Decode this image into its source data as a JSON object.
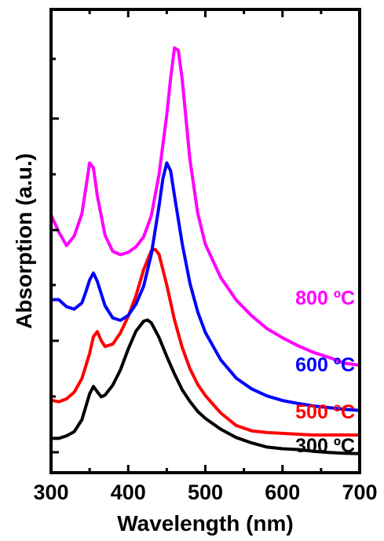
{
  "chart_data": {
    "type": "line",
    "title": "",
    "xlabel": "Wavelength (nm)",
    "ylabel": "Absorption (a.u.)",
    "xlim": [
      300,
      700
    ],
    "ylim": [
      0,
      100
    ],
    "xticks": [
      300,
      400,
      500,
      600,
      700
    ],
    "y_tick_labels_shown": false,
    "grid": false,
    "legend": "inline labels at right",
    "series": [
      {
        "name": "300 ºC",
        "color": "#000000",
        "x": [
          300,
          310,
          320,
          330,
          340,
          350,
          355,
          360,
          365,
          370,
          380,
          390,
          400,
          410,
          420,
          425,
          430,
          440,
          450,
          460,
          470,
          480,
          490,
          500,
          520,
          540,
          560,
          580,
          600,
          620,
          640,
          660,
          680,
          700
        ],
        "y": [
          6.0,
          6.0,
          6.6,
          7.6,
          10.5,
          16.7,
          18.5,
          17.2,
          16.0,
          16.4,
          18.8,
          22.5,
          27.5,
          31.8,
          34.2,
          34.5,
          33.8,
          30.3,
          25.7,
          21.5,
          17.7,
          14.9,
          12.5,
          10.8,
          8.2,
          6.2,
          4.9,
          3.9,
          3.5,
          3.3,
          2.9,
          2.6,
          2.4,
          2.3
        ]
      },
      {
        "name": "500 ºC",
        "color": "#ff0000",
        "x": [
          300,
          310,
          320,
          330,
          340,
          350,
          355,
          360,
          365,
          370,
          380,
          390,
          400,
          410,
          420,
          430,
          435,
          440,
          450,
          460,
          470,
          480,
          490,
          500,
          520,
          540,
          560,
          580,
          600,
          620,
          640,
          660,
          680,
          700
        ],
        "y": [
          15.2,
          14.8,
          15.5,
          17.1,
          20.4,
          26.4,
          30.5,
          31.7,
          29.5,
          28.1,
          28.7,
          31.4,
          35.4,
          40.3,
          46.6,
          51.2,
          51.5,
          50.3,
          42.9,
          34.5,
          27.9,
          22.8,
          19.0,
          16.3,
          12.1,
          9.1,
          7.8,
          7.4,
          7.2,
          7.0,
          6.8,
          6.8,
          6.8,
          6.8
        ]
      },
      {
        "name": "600 ºC",
        "color": "#0000ff",
        "x": [
          300,
          310,
          320,
          330,
          340,
          345,
          350,
          355,
          360,
          370,
          380,
          390,
          400,
          410,
          420,
          430,
          440,
          445,
          450,
          455,
          460,
          470,
          480,
          490,
          500,
          520,
          540,
          560,
          580,
          600,
          620,
          640,
          660,
          680,
          700
        ],
        "y": [
          39.4,
          39.4,
          37.7,
          37.1,
          38.6,
          41.2,
          44.1,
          45.8,
          43.8,
          37.9,
          35.0,
          34.4,
          35.6,
          38.3,
          42.6,
          50.3,
          61.9,
          68.6,
          72.3,
          70.4,
          64.4,
          52.9,
          43.4,
          36.5,
          31.5,
          24.9,
          20.5,
          17.9,
          16.2,
          15.1,
          14.4,
          13.8,
          13.4,
          13.0,
          12.7
        ]
      },
      {
        "name": "800 ºC",
        "color": "#ff00ff",
        "x": [
          300,
          310,
          320,
          330,
          340,
          345,
          350,
          355,
          360,
          370,
          380,
          390,
          400,
          410,
          420,
          430,
          440,
          450,
          455,
          460,
          465,
          470,
          480,
          490,
          500,
          520,
          540,
          560,
          580,
          600,
          620,
          640,
          660,
          680,
          700
        ],
        "y": [
          59.8,
          55.7,
          52.4,
          54.7,
          60.1,
          66.1,
          72.3,
          71.1,
          64.4,
          54.9,
          51.0,
          50.2,
          50.8,
          52.1,
          54.5,
          59.6,
          69.5,
          83.9,
          92.7,
          100.0,
          99.4,
          92.5,
          73.2,
          60.3,
          52.7,
          44.7,
          39.3,
          35.5,
          32.4,
          30.2,
          28.3,
          26.7,
          25.5,
          24.1,
          23.6
        ]
      }
    ]
  },
  "labels": {
    "s300": "300 ºC",
    "s500": "500 ºC",
    "s600": "600 ºC",
    "s800": "800 ºC"
  },
  "axes": {
    "xlabel": "Wavelength (nm)",
    "ylabel": "Absorption (a.u.)",
    "xticks": [
      "300",
      "400",
      "500",
      "600",
      "700"
    ]
  }
}
